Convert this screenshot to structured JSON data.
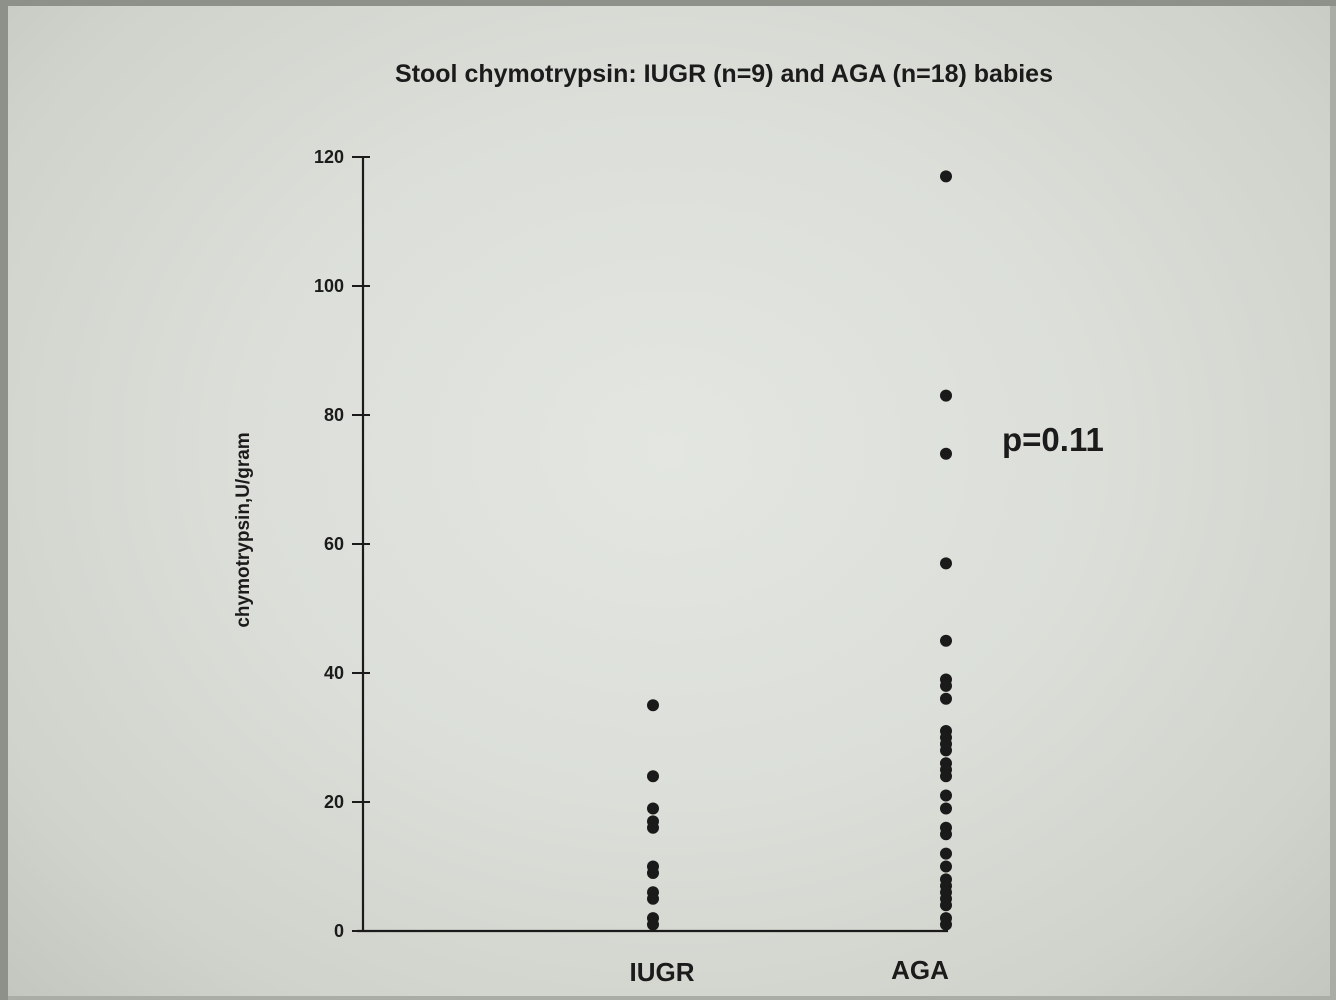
{
  "chart_data": {
    "type": "scatter",
    "title": "Stool chymotrypsin: IUGR (n=9) and AGA (n=18) babies",
    "xlabel": "",
    "ylabel": "chymotrypsin,U/gram",
    "ylim": [
      0,
      120
    ],
    "yticks": [
      "0",
      "20",
      "40",
      "60",
      "80",
      "100",
      "120"
    ],
    "categories": [
      "IUGR",
      "AGA"
    ],
    "series": [
      {
        "category": "IUGR",
        "values": [
          35,
          24,
          19,
          17,
          16,
          10,
          9,
          6,
          5,
          2,
          1
        ]
      },
      {
        "category": "AGA",
        "values": [
          117,
          83,
          74,
          57,
          45,
          39,
          38,
          36,
          31,
          30,
          29,
          28,
          26,
          25,
          24,
          21,
          19,
          16,
          15,
          12,
          10,
          8,
          7,
          6,
          5,
          4,
          2,
          1
        ]
      }
    ],
    "annotations": [
      "p=0.11"
    ],
    "grid": false,
    "marker_color": "#1a1a1a",
    "text_color": "#1b1b1b",
    "background_color": "#dcdfd9"
  }
}
